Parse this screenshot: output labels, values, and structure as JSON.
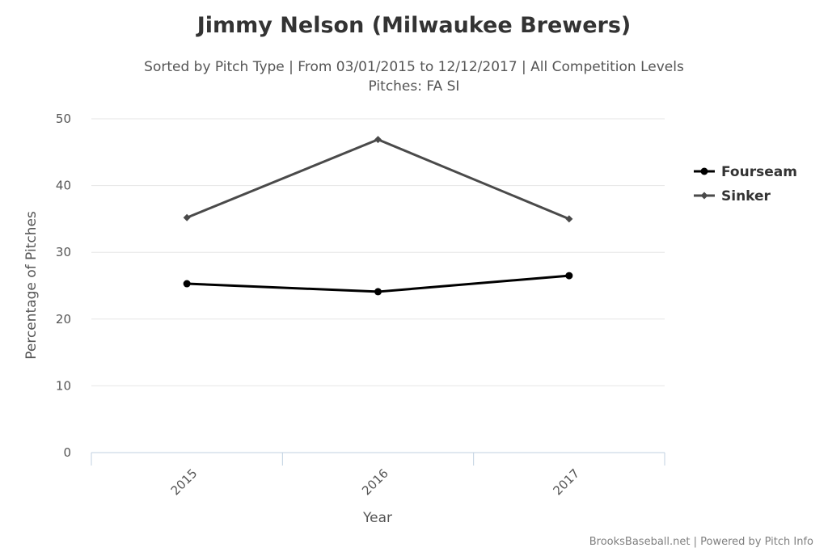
{
  "chart_data": {
    "type": "line",
    "title": "Jimmy Nelson (Milwaukee Brewers)",
    "subtitle_lines": [
      "Sorted by Pitch Type | From 03/01/2015 to 12/12/2017 | All Competition Levels",
      "Pitches: FA SI"
    ],
    "categories": [
      "2015",
      "2016",
      "2017"
    ],
    "xlabel": "Year",
    "ylabel": "Percentage of Pitches",
    "ylim": [
      0,
      50
    ],
    "yticks": [
      0,
      10,
      20,
      30,
      40,
      50
    ],
    "grid": true,
    "legend_position": "right",
    "series": [
      {
        "name": "Fourseam",
        "values": [
          25.3,
          24.1,
          26.5
        ],
        "color": "#000000",
        "marker": "circle"
      },
      {
        "name": "Sinker",
        "values": [
          35.2,
          46.9,
          35.0
        ],
        "color": "#4a4a4a",
        "marker": "diamond"
      }
    ]
  },
  "credits": "BrooksBaseball.net | Powered by Pitch Info",
  "colors": {
    "grid": "#e6e6e6",
    "axis": "#c0d0e0",
    "text": "#555555",
    "title": "#333333"
  }
}
